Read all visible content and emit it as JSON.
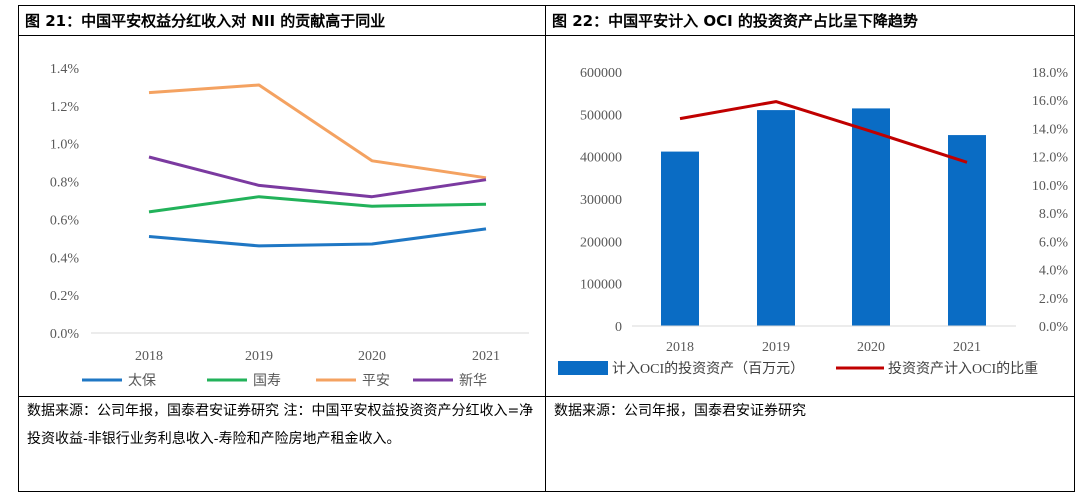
{
  "left": {
    "title": "图 21：中国平安权益分红收入对 NII 的贡献高于同业",
    "source": "数据来源：公司年报，国泰君安证券研究 注：中国平安权益投资资产分红收入=净投资收益-非银行业务利息收入-寿险和产险房地产租金收入。"
  },
  "right": {
    "title": "图 22：中国平安计入 OCI 的投资资产占比呈下降趋势",
    "source": "数据来源：公司年报，国泰君安证券研究"
  },
  "chart_data": [
    {
      "type": "line",
      "x": [
        "2018",
        "2019",
        "2020",
        "2021"
      ],
      "y_ticks": [
        "0.0%",
        "0.2%",
        "0.4%",
        "0.6%",
        "0.8%",
        "1.0%",
        "1.2%",
        "1.4%"
      ],
      "ylim": [
        0,
        1.4
      ],
      "legend_position": "bottom",
      "series": [
        {
          "name": "太保",
          "color": "#1f77c4",
          "values": [
            0.51,
            0.46,
            0.47,
            0.55
          ]
        },
        {
          "name": "国寿",
          "color": "#22b25a",
          "values": [
            0.64,
            0.72,
            0.67,
            0.68
          ]
        },
        {
          "name": "平安",
          "color": "#f4a261",
          "values": [
            1.27,
            1.31,
            0.91,
            0.82
          ]
        },
        {
          "name": "新华",
          "color": "#7b3aa0",
          "values": [
            0.93,
            0.78,
            0.72,
            0.81
          ]
        }
      ]
    },
    {
      "type": "bar+line",
      "x": [
        "2018",
        "2019",
        "2020",
        "2021"
      ],
      "y_left_ticks": [
        "0",
        "100000",
        "200000",
        "300000",
        "400000",
        "500000",
        "600000"
      ],
      "y_left_lim": [
        0,
        600000
      ],
      "y_right_ticks": [
        "0.0%",
        "2.0%",
        "4.0%",
        "6.0%",
        "8.0%",
        "10.0%",
        "12.0%",
        "14.0%",
        "16.0%",
        "18.0%"
      ],
      "y_right_lim": [
        0,
        18
      ],
      "legend_position": "bottom",
      "bars": {
        "name": "计入OCI的投资资产（百万元）",
        "color": "#0a6cc4",
        "values": [
          412000,
          510000,
          514000,
          451000
        ]
      },
      "line": {
        "name": "投资资产计入OCI的比重",
        "color": "#c00000",
        "values": [
          14.7,
          15.9,
          13.8,
          11.6
        ]
      }
    }
  ]
}
